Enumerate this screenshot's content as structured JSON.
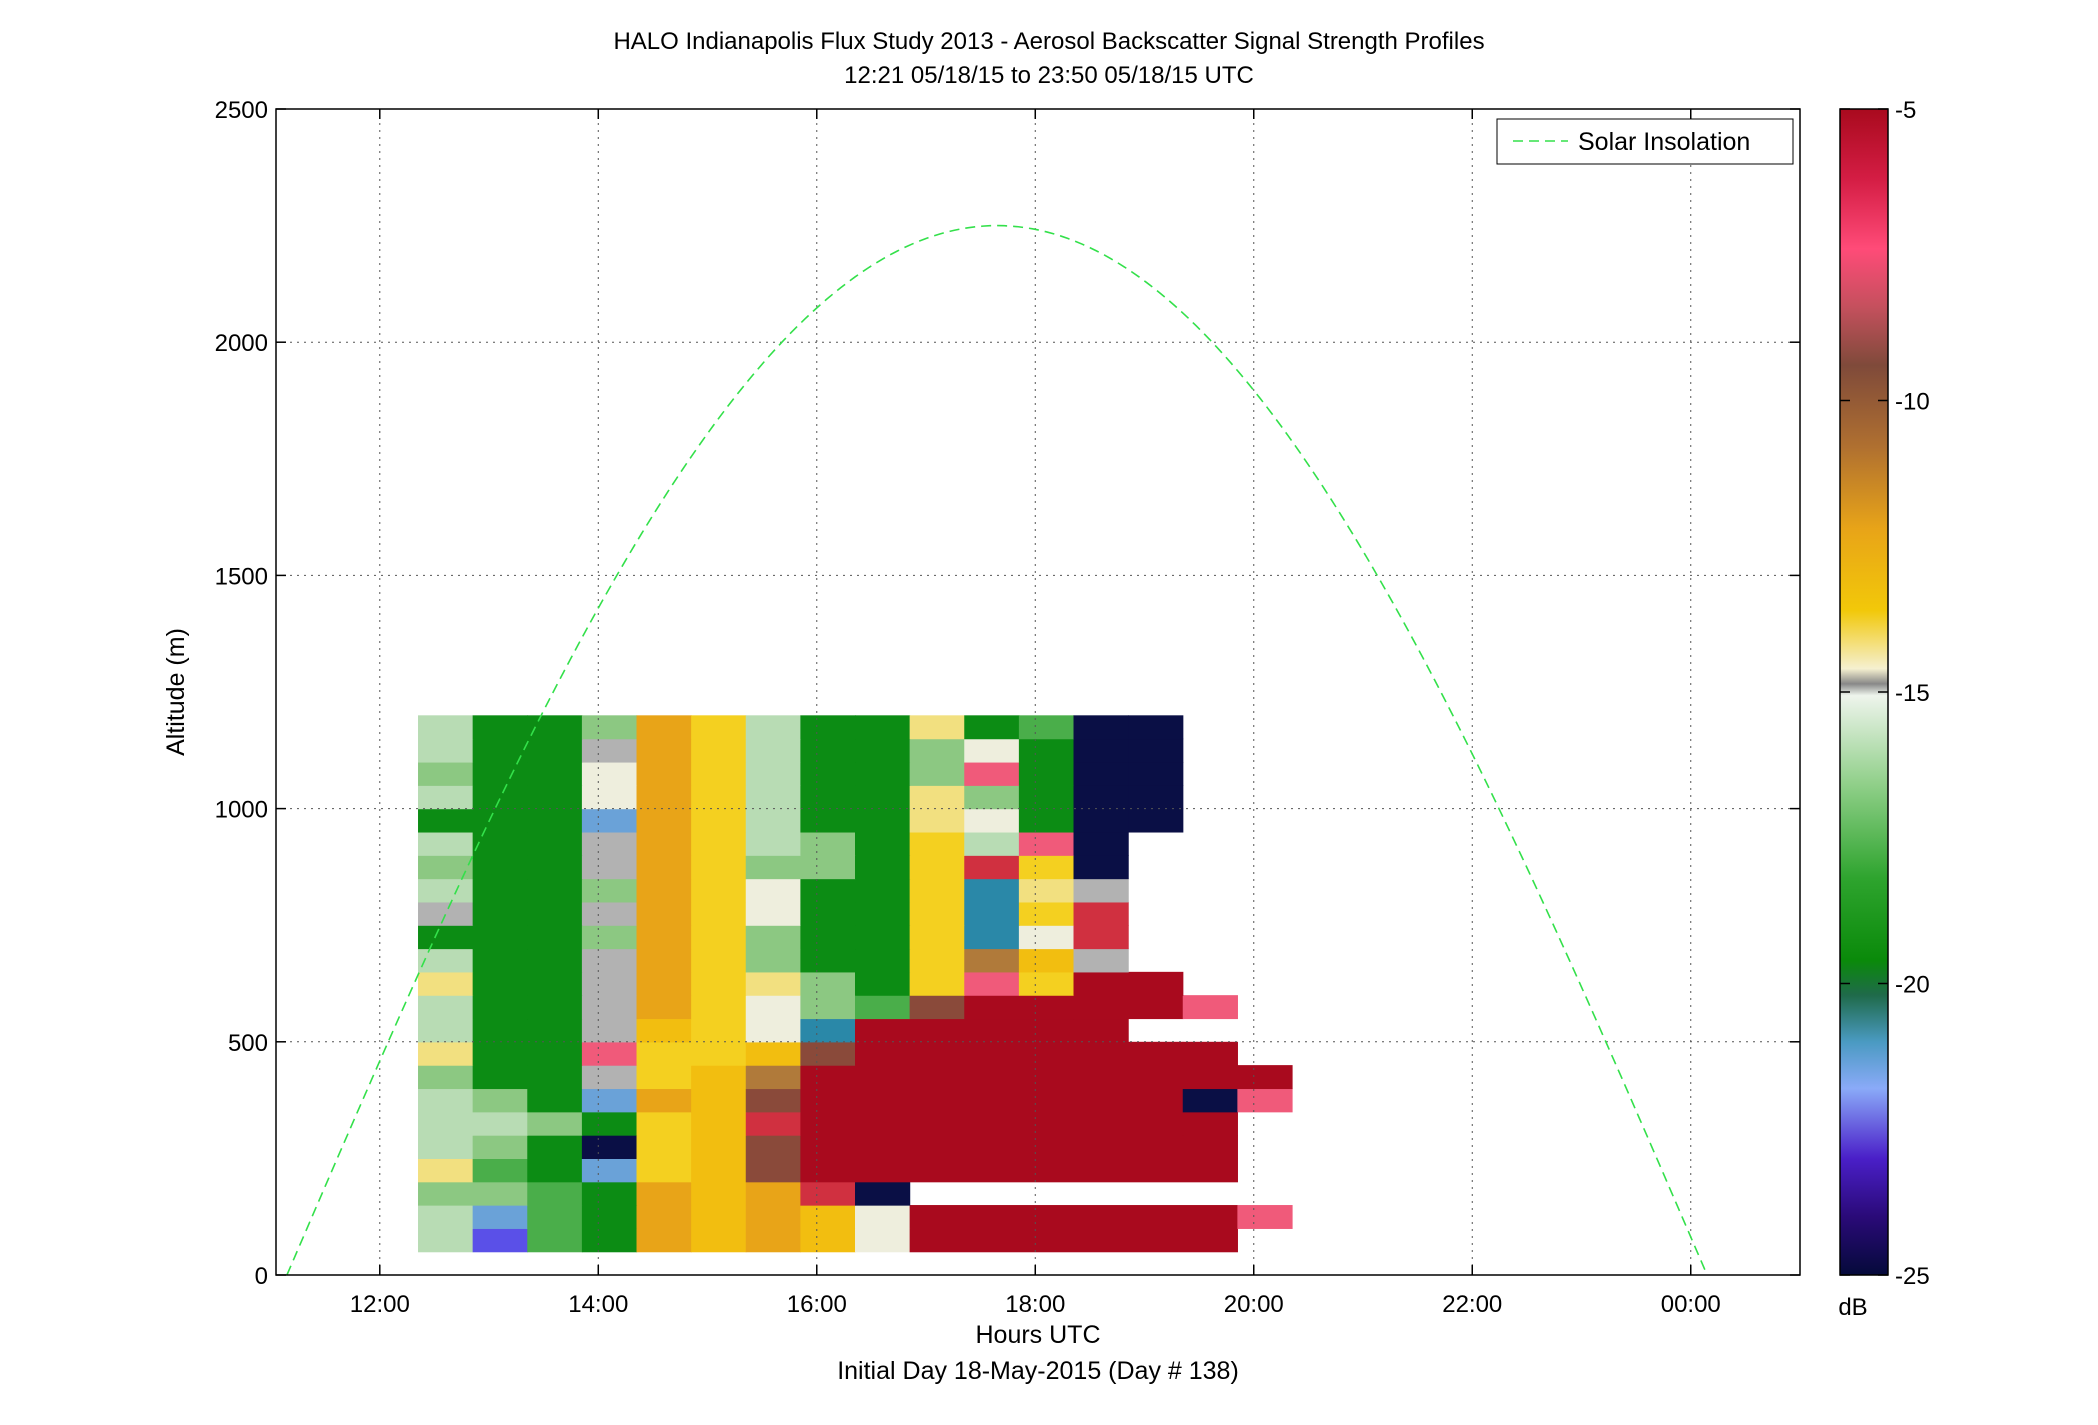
{
  "chart_data": {
    "type": "heatmap",
    "title": "HALO Indianapolis Flux Study 2013 - Aerosol Backscatter Signal Strength Profiles",
    "subtitle": "12:21 05/18/15 to 23:50 05/18/15  UTC",
    "xlabel": "Hours UTC",
    "xlabel2": "Initial Day 18-May-2015 (Day # 138)",
    "ylabel": "Altitude (m)",
    "x_ticks": [
      "12:00",
      "14:00",
      "16:00",
      "18:00",
      "20:00",
      "22:00",
      "00:00"
    ],
    "x_tick_hours": [
      12,
      14,
      16,
      18,
      20,
      22,
      24
    ],
    "xlim_hours": [
      11.05,
      25.0
    ],
    "y_ticks": [
      "0",
      "500",
      "1000",
      "1500",
      "2000",
      "2500"
    ],
    "y_tick_values": [
      0,
      500,
      1000,
      1500,
      2000,
      2500
    ],
    "ylim": [
      0,
      2500
    ],
    "grid": true,
    "legend": {
      "position": "top-right",
      "entries": [
        "Solar Insolation"
      ]
    },
    "colorbar": {
      "unit": "dB",
      "ticks": [
        "-5",
        "-10",
        "-15",
        "-20",
        "-25"
      ],
      "tick_values": [
        -5,
        -10,
        -15,
        -20,
        -25
      ],
      "range": [
        -25,
        -5
      ]
    },
    "heatmap": {
      "x_start_hours": 12.35,
      "x_step_hours": 0.5,
      "y_start_m": 50,
      "y_step_m": 50,
      "cells": [
        [
          [
            "gl",
            1
          ],
          [
            "bp",
            1
          ],
          [
            "ld",
            1
          ],
          [
            "gd",
            1
          ],
          [
            "or",
            1
          ],
          [
            "my",
            1
          ],
          [
            "or",
            1
          ],
          [
            "my",
            1
          ],
          [
            "lt",
            1
          ],
          [
            "cr",
            6
          ]
        ],
        [
          [
            "gl",
            1
          ],
          [
            "bl",
            1
          ],
          [
            "ld",
            1
          ],
          [
            "gd",
            1
          ],
          [
            "or",
            1
          ],
          [
            "my",
            1
          ],
          [
            "or",
            1
          ],
          [
            "my",
            1
          ],
          [
            "lt",
            1
          ],
          [
            "cr",
            6
          ],
          [
            "pk",
            1
          ]
        ],
        [
          [
            "gm",
            1
          ],
          [
            "gm",
            1
          ],
          [
            "ld",
            1
          ],
          [
            "gd",
            1
          ],
          [
            "or",
            1
          ],
          [
            "my",
            1
          ],
          [
            "or",
            1
          ],
          [
            "pi",
            1
          ],
          [
            "nv",
            1
          ]
        ],
        [
          [
            "ly",
            1
          ],
          [
            "ld",
            1
          ],
          [
            "gd",
            1
          ],
          [
            "bl",
            1
          ],
          [
            "ye",
            1
          ],
          [
            "my",
            1
          ],
          [
            "br",
            1
          ],
          [
            "cr",
            8
          ]
        ],
        [
          [
            "gl",
            1
          ],
          [
            "gm",
            1
          ],
          [
            "gd",
            1
          ],
          [
            "nv",
            1
          ],
          [
            "ye",
            1
          ],
          [
            "my",
            1
          ],
          [
            "br",
            1
          ],
          [
            "cr",
            8
          ]
        ],
        [
          [
            "gl",
            1
          ],
          [
            "gl",
            1
          ],
          [
            "gm",
            1
          ],
          [
            "gd",
            1
          ],
          [
            "ye",
            1
          ],
          [
            "my",
            1
          ],
          [
            "pi",
            1
          ],
          [
            "cr",
            7
          ],
          [
            "cr",
            1
          ]
        ],
        [
          [
            "gl",
            1
          ],
          [
            "gm",
            1
          ],
          [
            "gd",
            1
          ],
          [
            "bl",
            1
          ],
          [
            "or",
            1
          ],
          [
            "my",
            1
          ],
          [
            "br",
            1
          ],
          [
            "cr",
            7
          ],
          [
            "nv",
            1
          ],
          [
            "pk",
            1
          ]
        ],
        [
          [
            "gm",
            1
          ],
          [
            "gd",
            1
          ],
          [
            "gd",
            1
          ],
          [
            "gr",
            1
          ],
          [
            "ye",
            1
          ],
          [
            "my",
            1
          ],
          [
            "tn",
            1
          ],
          [
            "cr",
            7
          ],
          [
            "cr",
            2
          ]
        ],
        [
          [
            "ly",
            1
          ],
          [
            "gd",
            1
          ],
          [
            "gd",
            1
          ],
          [
            "pk",
            1
          ],
          [
            "ye",
            1
          ],
          [
            "ye",
            1
          ],
          [
            "my",
            1
          ],
          [
            "br",
            1
          ],
          [
            "cr",
            6
          ],
          [
            "cr",
            1
          ]
        ],
        [
          [
            "gl",
            1
          ],
          [
            "gd",
            1
          ],
          [
            "gd",
            1
          ],
          [
            "gr",
            1
          ],
          [
            "my",
            1
          ],
          [
            "ye",
            1
          ],
          [
            "lt",
            1
          ],
          [
            "mb",
            1
          ],
          [
            "cr",
            4
          ],
          [
            "cr",
            1
          ]
        ],
        [
          [
            "gl",
            1
          ],
          [
            "gd",
            1
          ],
          [
            "gd",
            1
          ],
          [
            "gr",
            1
          ],
          [
            "or",
            1
          ],
          [
            "ye",
            1
          ],
          [
            "lt",
            1
          ],
          [
            "gm",
            1
          ],
          [
            "ld",
            1
          ],
          [
            "br",
            1
          ],
          [
            "cr",
            4
          ],
          [
            "pk",
            1
          ]
        ],
        [
          [
            "ly",
            1
          ],
          [
            "gd",
            1
          ],
          [
            "gd",
            1
          ],
          [
            "gr",
            1
          ],
          [
            "or",
            1
          ],
          [
            "ye",
            1
          ],
          [
            "ly",
            1
          ],
          [
            "gm",
            1
          ],
          [
            "gd",
            1
          ],
          [
            "ye",
            1
          ],
          [
            "pk",
            1
          ],
          [
            "ye",
            1
          ],
          [
            "cr",
            2
          ]
        ],
        [
          [
            "gl",
            1
          ],
          [
            "gd",
            1
          ],
          [
            "gd",
            1
          ],
          [
            "gr",
            1
          ],
          [
            "or",
            1
          ],
          [
            "ye",
            1
          ],
          [
            "gm",
            1
          ],
          [
            "gd",
            1
          ],
          [
            "gd",
            1
          ],
          [
            "ye",
            1
          ],
          [
            "tn",
            1
          ],
          [
            "my",
            1
          ],
          [
            "gr",
            1
          ]
        ],
        [
          [
            "gd",
            1
          ],
          [
            "gd",
            1
          ],
          [
            "gd",
            1
          ],
          [
            "gm",
            1
          ],
          [
            "or",
            1
          ],
          [
            "ye",
            1
          ],
          [
            "gm",
            1
          ],
          [
            "gd",
            1
          ],
          [
            "gd",
            1
          ],
          [
            "ye",
            1
          ],
          [
            "mb",
            1
          ],
          [
            "lt",
            1
          ],
          [
            "pi",
            1
          ]
        ],
        [
          [
            "gr",
            1
          ],
          [
            "gd",
            1
          ],
          [
            "gd",
            1
          ],
          [
            "gr",
            1
          ],
          [
            "or",
            1
          ],
          [
            "ye",
            1
          ],
          [
            "lt",
            1
          ],
          [
            "gd",
            1
          ],
          [
            "gd",
            1
          ],
          [
            "ye",
            1
          ],
          [
            "mb",
            1
          ],
          [
            "ye",
            1
          ],
          [
            "pi",
            1
          ]
        ],
        [
          [
            "gl",
            1
          ],
          [
            "gd",
            1
          ],
          [
            "gd",
            1
          ],
          [
            "gm",
            1
          ],
          [
            "or",
            1
          ],
          [
            "ye",
            1
          ],
          [
            "lt",
            1
          ],
          [
            "gd",
            1
          ],
          [
            "gd",
            1
          ],
          [
            "ye",
            1
          ],
          [
            "mb",
            1
          ],
          [
            "ly",
            1
          ],
          [
            "gr",
            1
          ]
        ],
        [
          [
            "gm",
            1
          ],
          [
            "gd",
            1
          ],
          [
            "gd",
            1
          ],
          [
            "gr",
            1
          ],
          [
            "or",
            1
          ],
          [
            "ye",
            1
          ],
          [
            "gm",
            1
          ],
          [
            "gm",
            1
          ],
          [
            "gd",
            1
          ],
          [
            "ye",
            1
          ],
          [
            "pi",
            1
          ],
          [
            "ye",
            1
          ],
          [
            "nv",
            1
          ]
        ],
        [
          [
            "gl",
            1
          ],
          [
            "gd",
            1
          ],
          [
            "gd",
            1
          ],
          [
            "gr",
            1
          ],
          [
            "or",
            1
          ],
          [
            "ye",
            1
          ],
          [
            "gl",
            1
          ],
          [
            "gm",
            1
          ],
          [
            "gd",
            1
          ],
          [
            "ye",
            1
          ],
          [
            "gl",
            1
          ],
          [
            "pk",
            1
          ],
          [
            "nv",
            1
          ]
        ],
        [
          [
            "gd",
            1
          ],
          [
            "gd",
            1
          ],
          [
            "gd",
            1
          ],
          [
            "bl",
            1
          ],
          [
            "or",
            1
          ],
          [
            "ye",
            1
          ],
          [
            "gl",
            1
          ],
          [
            "gd",
            1
          ],
          [
            "gd",
            1
          ],
          [
            "ly",
            1
          ],
          [
            "lt",
            1
          ],
          [
            "gd",
            1
          ],
          [
            "nv",
            1
          ],
          [
            "nv",
            1
          ]
        ],
        [
          [
            "gl",
            1
          ],
          [
            "gd",
            1
          ],
          [
            "gd",
            1
          ],
          [
            "lt",
            1
          ],
          [
            "or",
            1
          ],
          [
            "ye",
            1
          ],
          [
            "gl",
            1
          ],
          [
            "gd",
            1
          ],
          [
            "gd",
            1
          ],
          [
            "ly",
            1
          ],
          [
            "gm",
            1
          ],
          [
            "gd",
            1
          ],
          [
            "nv",
            1
          ],
          [
            "nv",
            1
          ]
        ],
        [
          [
            "gm",
            1
          ],
          [
            "gd",
            1
          ],
          [
            "gd",
            1
          ],
          [
            "lt",
            1
          ],
          [
            "or",
            1
          ],
          [
            "ye",
            1
          ],
          [
            "gl",
            1
          ],
          [
            "gd",
            1
          ],
          [
            "gd",
            1
          ],
          [
            "gm",
            1
          ],
          [
            "pk",
            1
          ],
          [
            "gd",
            1
          ],
          [
            "nv",
            1
          ],
          [
            "nv",
            1
          ]
        ],
        [
          [
            "gl",
            1
          ],
          [
            "gd",
            1
          ],
          [
            "gd",
            1
          ],
          [
            "gr",
            1
          ],
          [
            "or",
            1
          ],
          [
            "ye",
            1
          ],
          [
            "gl",
            1
          ],
          [
            "gd",
            1
          ],
          [
            "gd",
            1
          ],
          [
            "gm",
            1
          ],
          [
            "lt",
            1
          ],
          [
            "gd",
            1
          ],
          [
            "nv",
            1
          ],
          [
            "nv",
            1
          ]
        ],
        [
          [
            "gl",
            1
          ],
          [
            "gd",
            1
          ],
          [
            "gd",
            1
          ],
          [
            "gm",
            1
          ],
          [
            "or",
            1
          ],
          [
            "ye",
            1
          ],
          [
            "gl",
            1
          ],
          [
            "gd",
            1
          ],
          [
            "gd",
            1
          ],
          [
            "ly",
            1
          ],
          [
            "gd",
            1
          ],
          [
            "ld",
            1
          ],
          [
            "nv",
            1
          ],
          [
            "nv",
            1
          ]
        ]
      ]
    },
    "solar_curve": {
      "peak_hour": 17.65,
      "peak_altitude_m": 2250,
      "half_width_hours": 6.5
    }
  }
}
